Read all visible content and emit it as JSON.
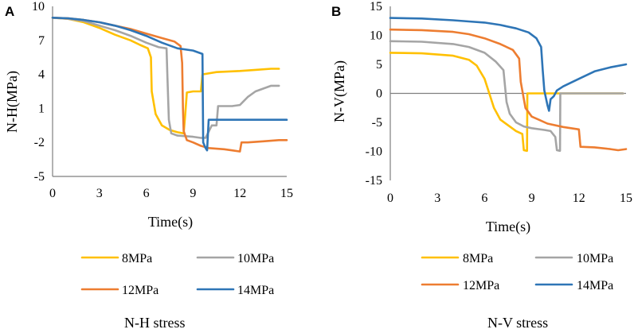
{
  "chart_data": [
    {
      "panel": "A",
      "type": "line",
      "xlabel": "Time(s)",
      "ylabel": "N-H(MPa)",
      "xlim": [
        0,
        15
      ],
      "ylim": [
        -5,
        10
      ],
      "xticks": [
        "0",
        "3",
        "6",
        "9",
        "12",
        "15"
      ],
      "yticks": [
        "10",
        "7",
        "4",
        "1",
        "-2",
        "-5"
      ],
      "caption": "N-H stress",
      "series": [
        {
          "name": "8MPa",
          "color": "#FFC000",
          "points": [
            [
              0,
              9.0
            ],
            [
              1,
              8.9
            ],
            [
              2,
              8.6
            ],
            [
              3,
              8.1
            ],
            [
              4,
              7.5
            ],
            [
              5,
              7.0
            ],
            [
              5.6,
              6.6
            ],
            [
              6.1,
              6.3
            ],
            [
              6.3,
              5.5
            ],
            [
              6.35,
              2.5
            ],
            [
              6.6,
              0.5
            ],
            [
              7.0,
              -0.5
            ],
            [
              7.5,
              -0.9
            ],
            [
              8.0,
              -1.1
            ],
            [
              8.4,
              -1.2
            ],
            [
              8.5,
              0.5
            ],
            [
              8.6,
              2.4
            ],
            [
              9.0,
              2.5
            ],
            [
              9.5,
              2.5
            ],
            [
              9.6,
              4.0
            ],
            [
              10.5,
              4.2
            ],
            [
              12,
              4.3
            ],
            [
              13,
              4.4
            ],
            [
              14,
              4.5
            ],
            [
              14.5,
              4.5
            ]
          ]
        },
        {
          "name": "10MPa",
          "color": "#A5A5A5",
          "points": [
            [
              0,
              9.0
            ],
            [
              1,
              8.9
            ],
            [
              2,
              8.7
            ],
            [
              3,
              8.3
            ],
            [
              4,
              7.9
            ],
            [
              5,
              7.4
            ],
            [
              6,
              6.8
            ],
            [
              6.8,
              6.4
            ],
            [
              7.3,
              6.3
            ],
            [
              7.35,
              4.0
            ],
            [
              7.45,
              0.0
            ],
            [
              7.6,
              -1.2
            ],
            [
              8.0,
              -1.4
            ],
            [
              9.0,
              -1.5
            ],
            [
              9.5,
              -1.6
            ],
            [
              9.8,
              -1.6
            ],
            [
              10.2,
              -0.5
            ],
            [
              10.5,
              -0.5
            ],
            [
              10.6,
              1.2
            ],
            [
              11.5,
              1.2
            ],
            [
              12.0,
              1.3
            ],
            [
              12.5,
              2.0
            ],
            [
              13,
              2.5
            ],
            [
              14,
              3.0
            ],
            [
              14.5,
              3.0
            ]
          ]
        },
        {
          "name": "12MPa",
          "color": "#ED7D31",
          "points": [
            [
              0,
              9.0
            ],
            [
              1,
              8.95
            ],
            [
              2,
              8.8
            ],
            [
              3,
              8.6
            ],
            [
              4,
              8.3
            ],
            [
              5,
              8.0
            ],
            [
              6,
              7.6
            ],
            [
              7,
              7.2
            ],
            [
              7.8,
              6.9
            ],
            [
              8.2,
              6.5
            ],
            [
              8.3,
              5.0
            ],
            [
              8.35,
              1.0
            ],
            [
              8.4,
              -1.0
            ],
            [
              8.6,
              -1.8
            ],
            [
              9.0,
              -2.0
            ],
            [
              9.5,
              -2.3
            ],
            [
              10,
              -2.5
            ],
            [
              11,
              -2.6
            ],
            [
              11.5,
              -2.7
            ],
            [
              12.0,
              -2.8
            ],
            [
              12.1,
              -2.0
            ],
            [
              12.5,
              -2.0
            ],
            [
              13.5,
              -1.9
            ],
            [
              14.5,
              -1.8
            ],
            [
              15,
              -1.8
            ]
          ]
        },
        {
          "name": "14MPa",
          "color": "#2E75B6",
          "points": [
            [
              0,
              9.0
            ],
            [
              1,
              8.95
            ],
            [
              2,
              8.8
            ],
            [
              3,
              8.6
            ],
            [
              4,
              8.3
            ],
            [
              5,
              7.9
            ],
            [
              6,
              7.4
            ],
            [
              7,
              6.8
            ],
            [
              8,
              6.3
            ],
            [
              9,
              6.1
            ],
            [
              9.6,
              5.8
            ],
            [
              9.65,
              -2.0
            ],
            [
              9.8,
              -2.5
            ],
            [
              9.9,
              -2.7
            ],
            [
              10,
              0.0
            ],
            [
              11,
              0.0
            ],
            [
              12,
              0.0
            ],
            [
              13,
              0.0
            ],
            [
              14,
              0.0
            ],
            [
              15,
              0.0
            ]
          ]
        }
      ]
    },
    {
      "panel": "B",
      "type": "line",
      "xlabel": "Time(s)",
      "ylabel": "N-V(MPa)",
      "xlim": [
        0,
        15
      ],
      "ylim": [
        -15,
        15
      ],
      "xticks": [
        "0",
        "3",
        "6",
        "9",
        "12",
        "15"
      ],
      "yticks": [
        "15",
        "10",
        "5",
        "0",
        "-5",
        "-10",
        "-15"
      ],
      "caption": "N-V stress",
      "series": [
        {
          "name": "8MPa",
          "color": "#FFC000",
          "points": [
            [
              0,
              7.0
            ],
            [
              2,
              6.9
            ],
            [
              4,
              6.5
            ],
            [
              5,
              5.8
            ],
            [
              5.5,
              4.8
            ],
            [
              6,
              2.5
            ],
            [
              6.3,
              0.0
            ],
            [
              6.6,
              -2.5
            ],
            [
              7.0,
              -4.5
            ],
            [
              7.5,
              -5.5
            ],
            [
              8.0,
              -6.5
            ],
            [
              8.4,
              -7.0
            ],
            [
              8.5,
              -9.8
            ],
            [
              8.7,
              -9.9
            ],
            [
              8.72,
              0.0
            ],
            [
              10,
              0.0
            ],
            [
              12,
              0.0
            ],
            [
              14,
              0.0
            ],
            [
              14.8,
              0.0
            ]
          ]
        },
        {
          "name": "10MPa",
          "color": "#A5A5A5",
          "points": [
            [
              0,
              9.0
            ],
            [
              2,
              8.9
            ],
            [
              4,
              8.5
            ],
            [
              5,
              8.0
            ],
            [
              6,
              7.0
            ],
            [
              6.7,
              5.5
            ],
            [
              7.2,
              4.0
            ],
            [
              7.4,
              -1.5
            ],
            [
              7.6,
              -3.5
            ],
            [
              8,
              -5.0
            ],
            [
              8.5,
              -5.7
            ],
            [
              9,
              -6.0
            ],
            [
              9.8,
              -6.3
            ],
            [
              10.2,
              -6.5
            ],
            [
              10.5,
              -7.5
            ],
            [
              10.6,
              -9.8
            ],
            [
              10.8,
              -9.9
            ],
            [
              10.82,
              0.0
            ],
            [
              12,
              0.0
            ],
            [
              13,
              0.0
            ],
            [
              14,
              0.0
            ],
            [
              14.8,
              0.0
            ]
          ]
        },
        {
          "name": "12MPa",
          "color": "#ED7D31",
          "points": [
            [
              0,
              11.0
            ],
            [
              2,
              10.9
            ],
            [
              4,
              10.6
            ],
            [
              5,
              10.2
            ],
            [
              6,
              9.5
            ],
            [
              7,
              8.5
            ],
            [
              7.8,
              7.5
            ],
            [
              8.2,
              6.0
            ],
            [
              8.3,
              2.0
            ],
            [
              8.6,
              -2.5
            ],
            [
              9,
              -4.0
            ],
            [
              9.5,
              -4.6
            ],
            [
              10,
              -5.2
            ],
            [
              11,
              -5.8
            ],
            [
              12,
              -6.2
            ],
            [
              12.1,
              -9.2
            ],
            [
              13,
              -9.3
            ],
            [
              14,
              -9.6
            ],
            [
              14.5,
              -9.8
            ],
            [
              15,
              -9.6
            ]
          ]
        },
        {
          "name": "14MPa",
          "color": "#2E75B6",
          "points": [
            [
              0,
              13.0
            ],
            [
              2,
              12.9
            ],
            [
              4,
              12.6
            ],
            [
              5,
              12.4
            ],
            [
              6,
              12.2
            ],
            [
              7,
              11.8
            ],
            [
              8,
              11.2
            ],
            [
              8.8,
              10.5
            ],
            [
              9.3,
              9.5
            ],
            [
              9.6,
              8.0
            ],
            [
              9.7,
              4.0
            ],
            [
              9.8,
              0.5
            ],
            [
              10,
              -2.0
            ],
            [
              10.1,
              -3.0
            ],
            [
              10.2,
              -1.0
            ],
            [
              10.4,
              -0.5
            ],
            [
              10.6,
              0.5
            ],
            [
              11,
              1.2
            ],
            [
              12,
              2.5
            ],
            [
              13,
              3.8
            ],
            [
              14,
              4.5
            ],
            [
              15,
              5.0
            ]
          ]
        }
      ]
    }
  ]
}
